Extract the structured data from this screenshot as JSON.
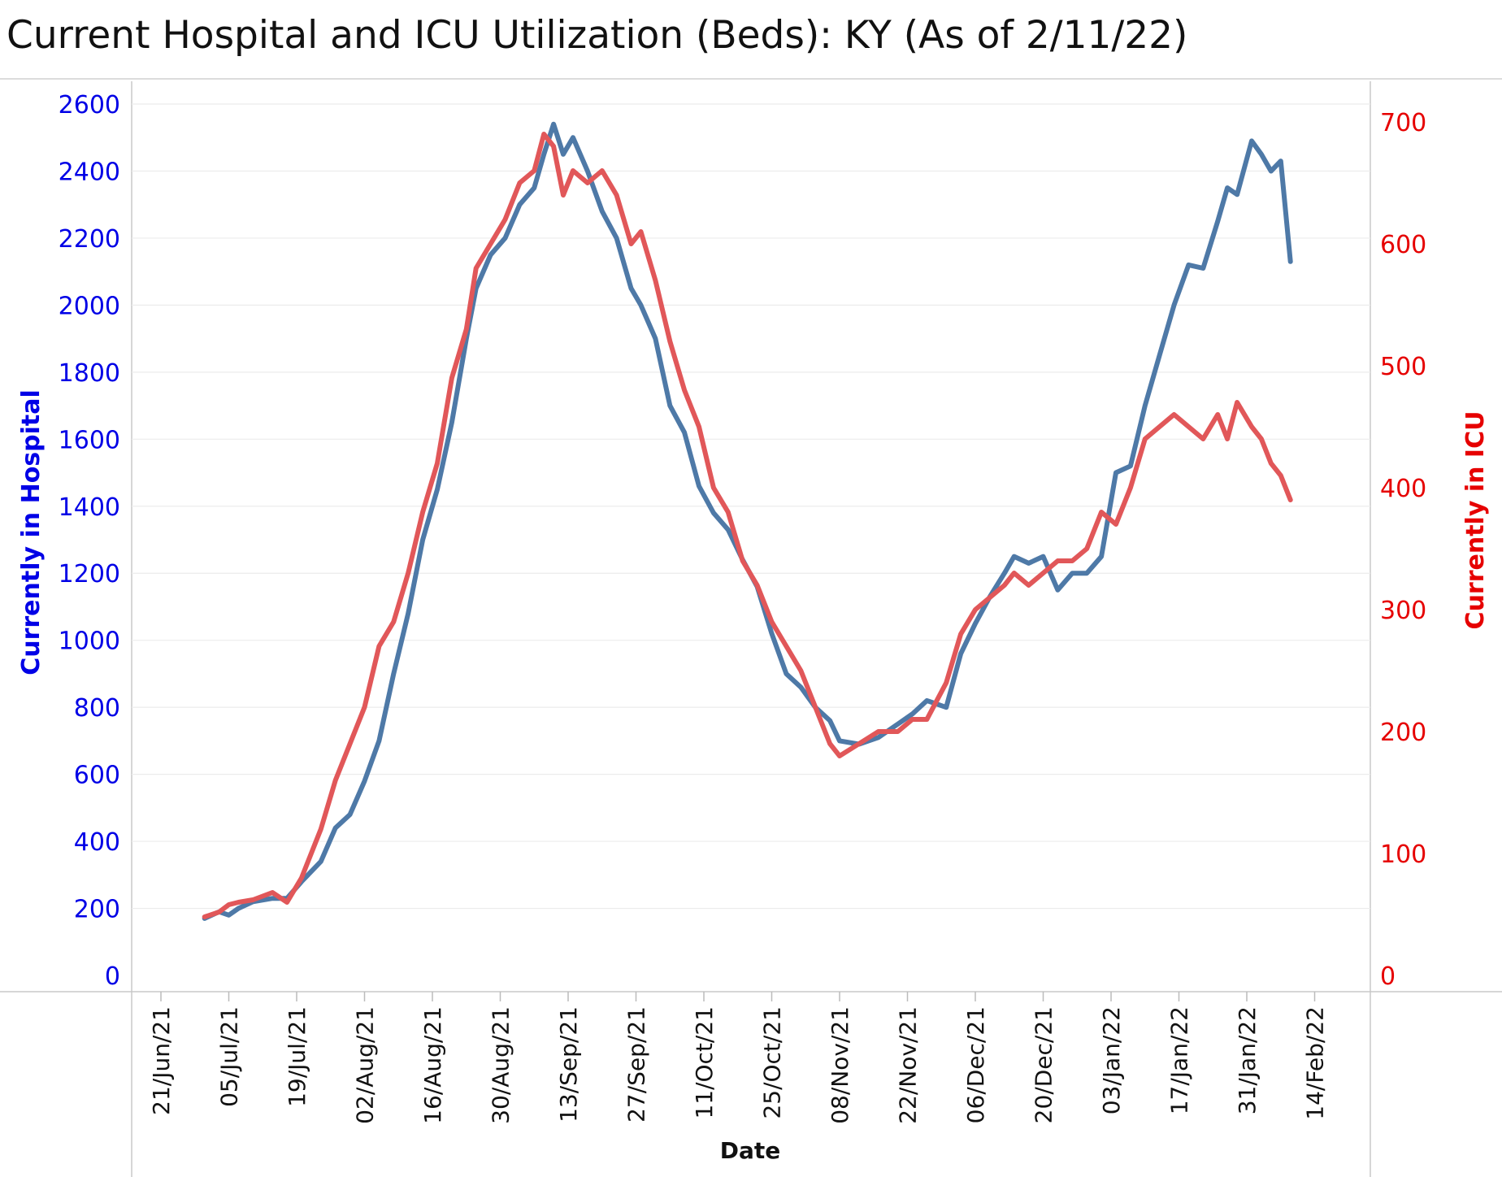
{
  "chart_data": {
    "type": "line",
    "title": "Current Hospital and ICU Utilization (Beds):  KY (As of 2/11/22)",
    "xlabel": "Date",
    "ylabel_left": "Currently in Hospital",
    "ylabel_right": "Currently in ICU",
    "ylim_left": [
      0,
      2600
    ],
    "ylim_right": [
      0,
      700
    ],
    "left_ticks": [
      0,
      200,
      400,
      600,
      800,
      1000,
      1200,
      1400,
      1600,
      1800,
      2000,
      2200,
      2400,
      2600
    ],
    "right_ticks": [
      0,
      100,
      200,
      300,
      400,
      500,
      600,
      700
    ],
    "x_tick_labels": [
      "21/Jun/21",
      "05/Jul/21",
      "19/Jul/21",
      "02/Aug/21",
      "16/Aug/21",
      "30/Aug/21",
      "13/Sep/21",
      "27/Sep/21",
      "11/Oct/21",
      "25/Oct/21",
      "08/Nov/21",
      "22/Nov/21",
      "06/Dec/21",
      "20/Dec/21",
      "03/Jan/22",
      "17/Jan/22",
      "31/Jan/22",
      "14/Feb/22"
    ],
    "grid": true,
    "series": [
      {
        "name": "Currently in Hospital",
        "axis": "left",
        "color": "#4e79a7",
        "x": [
          "2021-06-30",
          "2021-07-03",
          "2021-07-05",
          "2021-07-07",
          "2021-07-10",
          "2021-07-14",
          "2021-07-17",
          "2021-07-20",
          "2021-07-24",
          "2021-07-27",
          "2021-07-30",
          "2021-08-02",
          "2021-08-05",
          "2021-08-08",
          "2021-08-11",
          "2021-08-14",
          "2021-08-17",
          "2021-08-20",
          "2021-08-23",
          "2021-08-25",
          "2021-08-28",
          "2021-08-31",
          "2021-09-03",
          "2021-09-06",
          "2021-09-08",
          "2021-09-10",
          "2021-09-12",
          "2021-09-14",
          "2021-09-17",
          "2021-09-20",
          "2021-09-23",
          "2021-09-26",
          "2021-09-28",
          "2021-10-01",
          "2021-10-04",
          "2021-10-07",
          "2021-10-10",
          "2021-10-13",
          "2021-10-16",
          "2021-10-19",
          "2021-10-22",
          "2021-10-25",
          "2021-10-28",
          "2021-10-31",
          "2021-11-03",
          "2021-11-06",
          "2021-11-08",
          "2021-11-12",
          "2021-11-16",
          "2021-11-20",
          "2021-11-23",
          "2021-11-26",
          "2021-11-30",
          "2021-12-03",
          "2021-12-06",
          "2021-12-09",
          "2021-12-12",
          "2021-12-14",
          "2021-12-17",
          "2021-12-20",
          "2021-12-23",
          "2021-12-26",
          "2021-12-29",
          "2022-01-01",
          "2022-01-04",
          "2022-01-07",
          "2022-01-10",
          "2022-01-13",
          "2022-01-16",
          "2022-01-19",
          "2022-01-22",
          "2022-01-25",
          "2022-01-27",
          "2022-01-29",
          "2022-02-01",
          "2022-02-03",
          "2022-02-05",
          "2022-02-07",
          "2022-02-09"
        ],
        "values": [
          170,
          190,
          180,
          200,
          220,
          230,
          230,
          280,
          340,
          440,
          480,
          580,
          700,
          900,
          1080,
          1300,
          1450,
          1650,
          1900,
          2050,
          2150,
          2200,
          2300,
          2350,
          2450,
          2540,
          2450,
          2500,
          2400,
          2280,
          2200,
          2050,
          2000,
          1900,
          1700,
          1620,
          1460,
          1380,
          1330,
          1240,
          1160,
          1020,
          900,
          860,
          800,
          760,
          700,
          690,
          710,
          750,
          780,
          820,
          800,
          960,
          1050,
          1130,
          1200,
          1250,
          1230,
          1250,
          1150,
          1200,
          1200,
          1250,
          1500,
          1520,
          1700,
          1850,
          2000,
          2120,
          2110,
          2250,
          2350,
          2330,
          2490,
          2450,
          2400,
          2430,
          2130
        ]
      },
      {
        "name": "Currently in ICU",
        "axis": "right",
        "color": "#e15759",
        "x": [
          "2021-06-30",
          "2021-07-03",
          "2021-07-05",
          "2021-07-07",
          "2021-07-10",
          "2021-07-14",
          "2021-07-17",
          "2021-07-20",
          "2021-07-24",
          "2021-07-27",
          "2021-07-30",
          "2021-08-02",
          "2021-08-05",
          "2021-08-08",
          "2021-08-11",
          "2021-08-14",
          "2021-08-17",
          "2021-08-20",
          "2021-08-23",
          "2021-08-25",
          "2021-08-28",
          "2021-08-31",
          "2021-09-03",
          "2021-09-06",
          "2021-09-08",
          "2021-09-10",
          "2021-09-12",
          "2021-09-14",
          "2021-09-17",
          "2021-09-20",
          "2021-09-23",
          "2021-09-26",
          "2021-09-28",
          "2021-10-01",
          "2021-10-04",
          "2021-10-07",
          "2021-10-10",
          "2021-10-13",
          "2021-10-16",
          "2021-10-19",
          "2021-10-22",
          "2021-10-25",
          "2021-10-28",
          "2021-10-31",
          "2021-11-03",
          "2021-11-06",
          "2021-11-08",
          "2021-11-12",
          "2021-11-16",
          "2021-11-20",
          "2021-11-23",
          "2021-11-26",
          "2021-11-30",
          "2021-12-03",
          "2021-12-06",
          "2021-12-09",
          "2021-12-12",
          "2021-12-14",
          "2021-12-17",
          "2021-12-20",
          "2021-12-23",
          "2021-12-26",
          "2021-12-29",
          "2022-01-01",
          "2022-01-04",
          "2022-01-07",
          "2022-01-10",
          "2022-01-13",
          "2022-01-16",
          "2022-01-19",
          "2022-01-22",
          "2022-01-25",
          "2022-01-27",
          "2022-01-29",
          "2022-02-01",
          "2022-02-03",
          "2022-02-05",
          "2022-02-07",
          "2022-02-09"
        ],
        "values": [
          48,
          52,
          58,
          60,
          62,
          68,
          60,
          80,
          120,
          160,
          190,
          220,
          270,
          290,
          330,
          380,
          420,
          490,
          530,
          580,
          600,
          620,
          650,
          660,
          690,
          680,
          640,
          660,
          650,
          660,
          640,
          600,
          610,
          570,
          520,
          480,
          450,
          400,
          380,
          340,
          320,
          290,
          270,
          250,
          220,
          190,
          180,
          190,
          200,
          200,
          210,
          210,
          240,
          280,
          300,
          310,
          320,
          330,
          320,
          330,
          340,
          340,
          350,
          380,
          370,
          400,
          440,
          450,
          460,
          450,
          440,
          460,
          440,
          470,
          450,
          440,
          420,
          410,
          390
        ]
      }
    ]
  }
}
